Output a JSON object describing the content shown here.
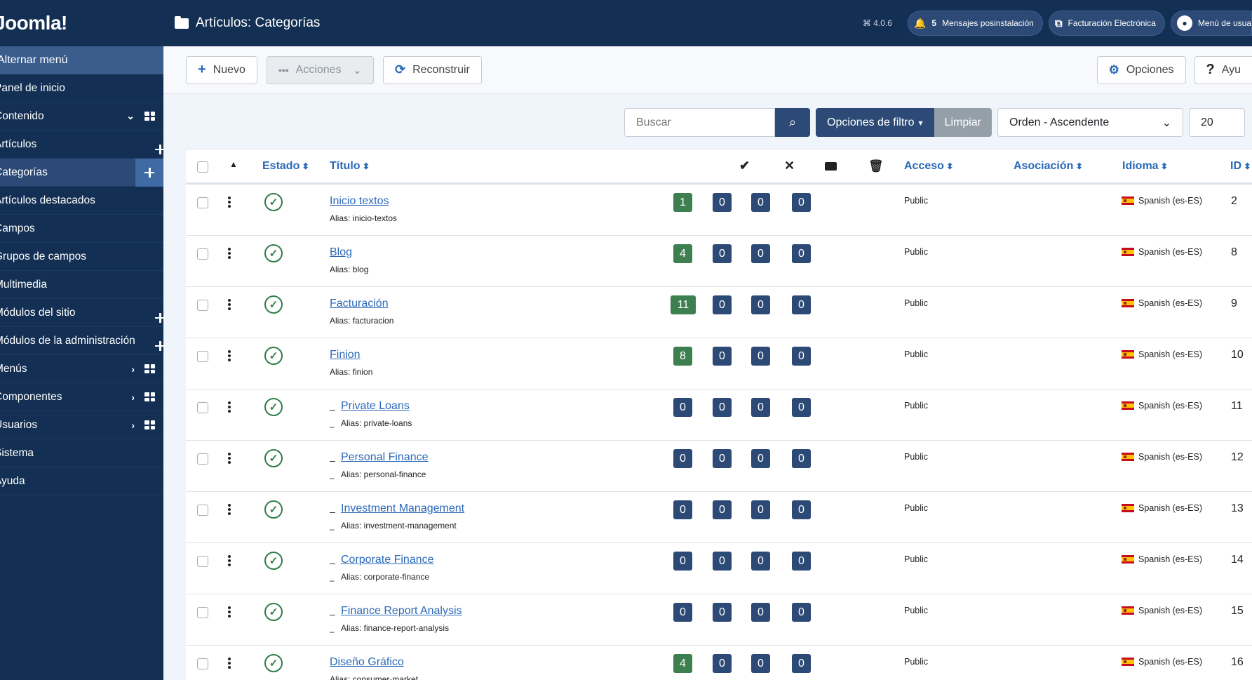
{
  "sidebar": {
    "logo": "Joomla!",
    "toggle": "Alternar menú",
    "items": [
      {
        "label": "Panel de inicio",
        "plus": false,
        "chevron": false,
        "grid": false,
        "active": false
      },
      {
        "label": "Contenido",
        "plus": false,
        "chevron": true,
        "grid": true,
        "active": false,
        "chev": "down"
      },
      {
        "label": "Artículos",
        "plus": true,
        "chevron": false,
        "grid": false,
        "active": false
      },
      {
        "label": "Categorías",
        "plus": true,
        "chevron": false,
        "grid": false,
        "active": true
      },
      {
        "label": "Artículos destacados",
        "plus": false,
        "chevron": false,
        "grid": false,
        "active": false
      },
      {
        "label": "Campos",
        "plus": false,
        "chevron": false,
        "grid": false,
        "active": false
      },
      {
        "label": "Grupos de campos",
        "plus": false,
        "chevron": false,
        "grid": false,
        "active": false
      },
      {
        "label": "Multimedia",
        "plus": false,
        "chevron": false,
        "grid": false,
        "active": false
      },
      {
        "label": "Módulos del sitio",
        "plus": true,
        "chevron": false,
        "grid": false,
        "active": false
      },
      {
        "label": "Módulos de la administración",
        "plus": true,
        "chevron": false,
        "grid": false,
        "active": false
      },
      {
        "label": "Menús",
        "plus": false,
        "chevron": true,
        "grid": true,
        "active": false,
        "chev": "right"
      },
      {
        "label": "Componentes",
        "plus": false,
        "chevron": true,
        "grid": true,
        "active": false,
        "chev": "right"
      },
      {
        "label": "Usuarios",
        "plus": false,
        "chevron": true,
        "grid": true,
        "active": false,
        "chev": "right"
      },
      {
        "label": "Sistema",
        "plus": false,
        "chevron": false,
        "grid": false,
        "active": false
      },
      {
        "label": "Ayuda",
        "plus": false,
        "chevron": false,
        "grid": false,
        "active": false
      }
    ]
  },
  "header": {
    "title": "Artículos: Categorías",
    "version": "⌘ 4.0.6",
    "notifications_count": "5",
    "notifications_label": "Mensajes posinstalación",
    "external_label": "Facturación Electrónica",
    "user_label": "Menú de usua"
  },
  "toolbar": {
    "new_label": "Nuevo",
    "actions_label": "Acciones",
    "rebuild_label": "Reconstruir",
    "options_label": "Opciones",
    "help_label": "Ayu"
  },
  "filters": {
    "search_placeholder": "Buscar",
    "filter_options_label": "Opciones de filtro",
    "clear_label": "Limpiar",
    "sort_value": "Orden - Ascendente",
    "limit_value": "20"
  },
  "table": {
    "headers": {
      "status": "Estado",
      "title": "Título",
      "access": "Acceso",
      "association": "Asociación",
      "language": "Idioma",
      "id": "ID"
    },
    "rows": [
      {
        "title": "Inicio textos",
        "alias": "Alias: inicio-textos",
        "child": false,
        "published": "1",
        "unpublished": "0",
        "archived": "0",
        "trashed": "0",
        "access": "Public",
        "language": "Spanish (es-ES)",
        "id": "2"
      },
      {
        "title": "Blog",
        "alias": "Alias: blog",
        "child": false,
        "published": "4",
        "unpublished": "0",
        "archived": "0",
        "trashed": "0",
        "access": "Public",
        "language": "Spanish (es-ES)",
        "id": "8"
      },
      {
        "title": "Facturación",
        "alias": "Alias: facturacion",
        "child": false,
        "published": "11",
        "unpublished": "0",
        "archived": "0",
        "trashed": "0",
        "access": "Public",
        "language": "Spanish (es-ES)",
        "id": "9"
      },
      {
        "title": "Finion",
        "alias": "Alias: finion",
        "child": false,
        "published": "8",
        "unpublished": "0",
        "archived": "0",
        "trashed": "0",
        "access": "Public",
        "language": "Spanish (es-ES)",
        "id": "10"
      },
      {
        "title": "Private Loans",
        "alias": "Alias: private-loans",
        "child": true,
        "published": "0",
        "unpublished": "0",
        "archived": "0",
        "trashed": "0",
        "access": "Public",
        "language": "Spanish (es-ES)",
        "id": "11"
      },
      {
        "title": "Personal Finance",
        "alias": "Alias: personal-finance",
        "child": true,
        "published": "0",
        "unpublished": "0",
        "archived": "0",
        "trashed": "0",
        "access": "Public",
        "language": "Spanish (es-ES)",
        "id": "12"
      },
      {
        "title": "Investment Management",
        "alias": "Alias: investment-management",
        "child": true,
        "published": "0",
        "unpublished": "0",
        "archived": "0",
        "trashed": "0",
        "access": "Public",
        "language": "Spanish (es-ES)",
        "id": "13"
      },
      {
        "title": "Corporate Finance",
        "alias": "Alias: corporate-finance",
        "child": true,
        "published": "0",
        "unpublished": "0",
        "archived": "0",
        "trashed": "0",
        "access": "Public",
        "language": "Spanish (es-ES)",
        "id": "14"
      },
      {
        "title": "Finance Report Analysis",
        "alias": "Alias: finance-report-analysis",
        "child": true,
        "published": "0",
        "unpublished": "0",
        "archived": "0",
        "trashed": "0",
        "access": "Public",
        "language": "Spanish (es-ES)",
        "id": "15"
      },
      {
        "title": "Diseño Gráfico",
        "alias": "Alias: consumer-market",
        "child": false,
        "published": "4",
        "unpublished": "0",
        "archived": "0",
        "trashed": "0",
        "access": "Public",
        "language": "Spanish (es-ES)",
        "id": "16"
      }
    ]
  },
  "colors": {
    "sidebar_bg": "#132f53",
    "accent": "#2a69b8",
    "published_badge": "#3e7f4f",
    "count_badge": "#2c4a75"
  }
}
